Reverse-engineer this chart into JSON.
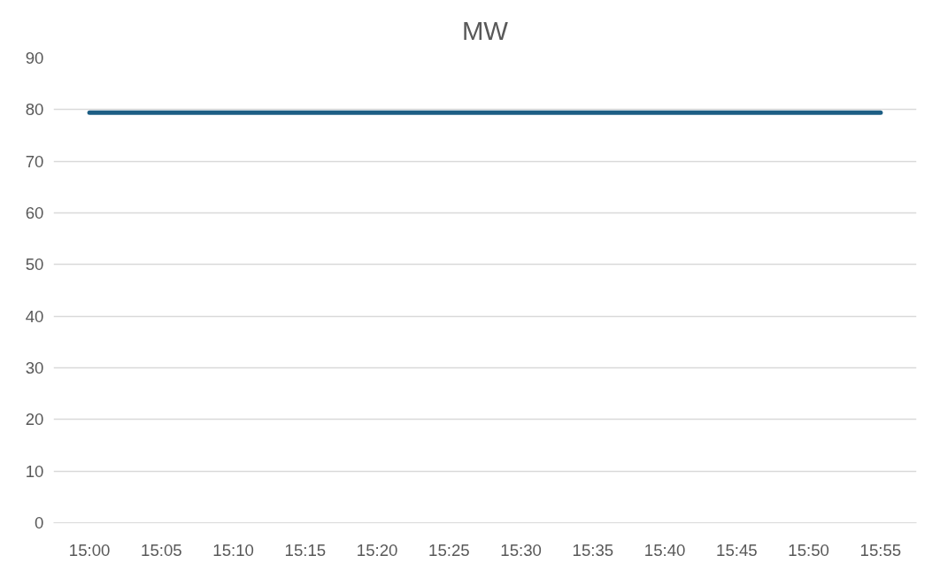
{
  "chart_data": {
    "type": "line",
    "title": "MW",
    "categories": [
      "15:00",
      "15:05",
      "15:10",
      "15:15",
      "15:20",
      "15:25",
      "15:30",
      "15:35",
      "15:40",
      "15:45",
      "15:50",
      "15:55"
    ],
    "series": [
      {
        "color": "#1d5e84",
        "values": [
          79.4,
          79.4,
          79.4,
          79.4,
          79.4,
          79.4,
          79.4,
          79.4,
          79.4,
          79.4,
          79.4,
          79.4
        ]
      }
    ],
    "ylim": [
      0,
      90
    ],
    "yticks": [
      0,
      10,
      20,
      30,
      40,
      50,
      60,
      70,
      80,
      90
    ],
    "grid": "y",
    "line_style": "solid"
  }
}
